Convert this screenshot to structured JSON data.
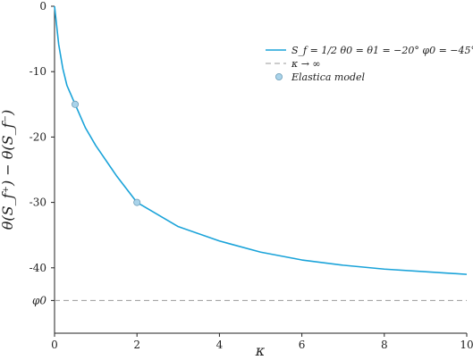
{
  "chart_data": {
    "type": "line",
    "xlabel": "κ",
    "ylabel": "θ(S_f⁺) − θ(S_f⁻)",
    "xlim": [
      0,
      10
    ],
    "ylim": [
      -50,
      0
    ],
    "grid": false,
    "legend_position": "top-right",
    "x_ticks": [
      "0",
      "2",
      "4",
      "6",
      "8",
      "10"
    ],
    "y_ticks": [
      "0",
      "-10",
      "-20",
      "-30",
      "-40"
    ],
    "series": [
      {
        "name": "S_f = 1/2   θ0 = θ1 = −20°   φ0 = −45°",
        "kind": "line",
        "color": "#1aa3d9",
        "x": [
          0,
          0.1,
          0.2,
          0.3,
          0.5,
          0.75,
          1,
          1.5,
          2,
          3,
          4,
          5,
          6,
          7,
          8,
          9,
          10
        ],
        "y": [
          0,
          -5.8,
          -9.5,
          -12.1,
          -15.0,
          -18.6,
          -21.3,
          -25.9,
          -30.0,
          -33.7,
          -35.9,
          -37.6,
          -38.8,
          -39.6,
          -40.2,
          -40.6,
          -41.0
        ]
      },
      {
        "name": "κ → ∞",
        "kind": "asymptote",
        "color": "#999999",
        "y_value": -45,
        "y_label": "φ0"
      },
      {
        "name": "Elastica model",
        "kind": "scatter",
        "color": "#a9d3ea",
        "x": [
          0.5,
          2
        ],
        "y": [
          -15.0,
          -30.0
        ]
      }
    ]
  }
}
